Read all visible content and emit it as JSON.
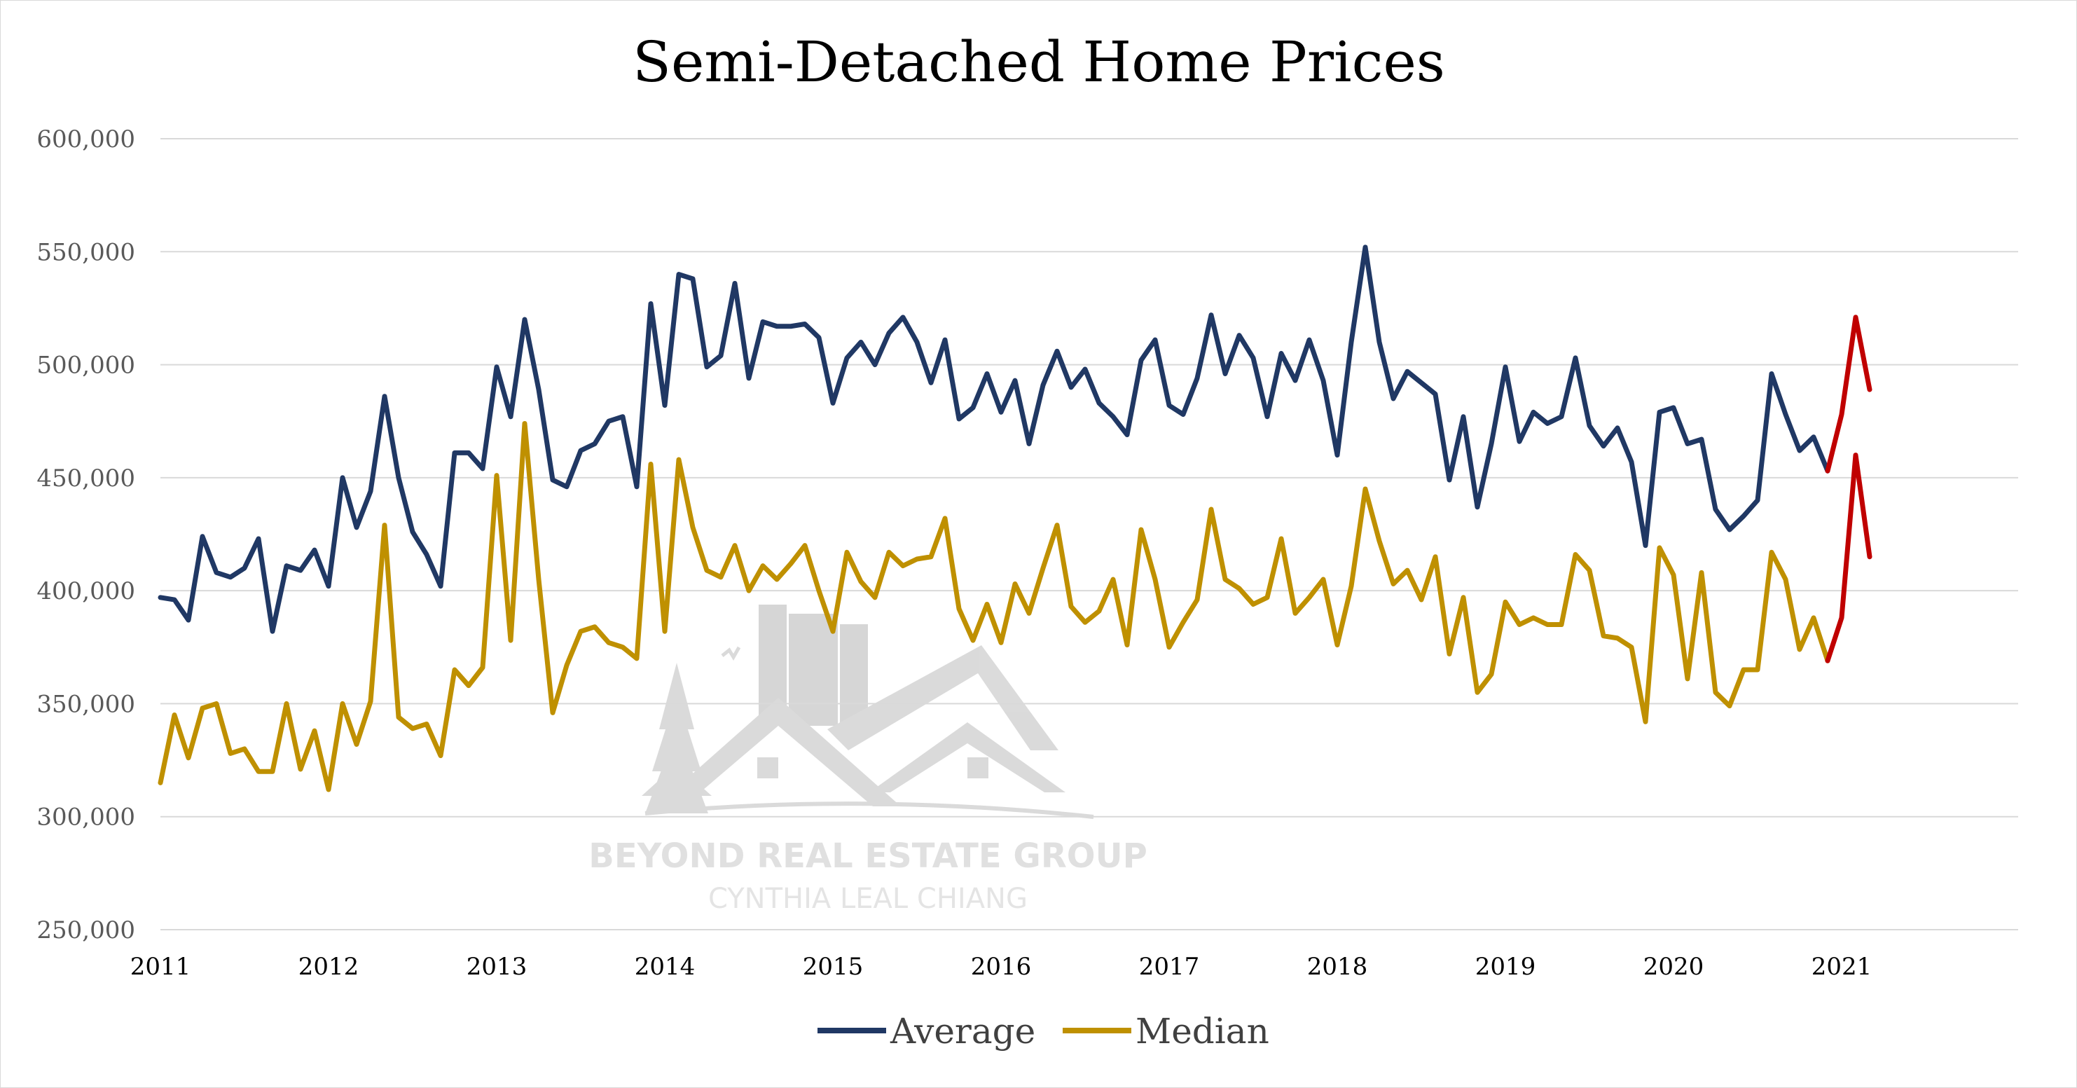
{
  "chart_data": {
    "type": "line",
    "title": "Semi-Detached Home Prices",
    "xlabel": "",
    "ylabel": "",
    "ylim": [
      250000,
      600000
    ],
    "y_ticks": [
      "250,000",
      "300,000",
      "350,000",
      "400,000",
      "450,000",
      "500,000",
      "550,000",
      "600,000"
    ],
    "x_ticks": [
      "2011",
      "2012",
      "2013",
      "2014",
      "2015",
      "2016",
      "2017",
      "2018",
      "2019",
      "2020",
      "2021"
    ],
    "x": [
      "2011-01",
      "2011-02",
      "2011-03",
      "2011-04",
      "2011-05",
      "2011-06",
      "2011-07",
      "2011-08",
      "2011-09",
      "2011-10",
      "2011-11",
      "2011-12",
      "2012-01",
      "2012-02",
      "2012-03",
      "2012-04",
      "2012-05",
      "2012-06",
      "2012-07",
      "2012-08",
      "2012-09",
      "2012-10",
      "2012-11",
      "2012-12",
      "2013-01",
      "2013-02",
      "2013-03",
      "2013-04",
      "2013-05",
      "2013-06",
      "2013-07",
      "2013-08",
      "2013-09",
      "2013-10",
      "2013-11",
      "2013-12",
      "2014-01",
      "2014-02",
      "2014-03",
      "2014-04",
      "2014-05",
      "2014-06",
      "2014-07",
      "2014-08",
      "2014-09",
      "2014-10",
      "2014-11",
      "2014-12",
      "2015-01",
      "2015-02",
      "2015-03",
      "2015-04",
      "2015-05",
      "2015-06",
      "2015-07",
      "2015-08",
      "2015-09",
      "2015-10",
      "2015-11",
      "2015-12",
      "2016-01",
      "2016-02",
      "2016-03",
      "2016-04",
      "2016-05",
      "2016-06",
      "2016-07",
      "2016-08",
      "2016-09",
      "2016-10",
      "2016-11",
      "2016-12",
      "2017-01",
      "2017-02",
      "2017-03",
      "2017-04",
      "2017-05",
      "2017-06",
      "2017-07",
      "2017-08",
      "2017-09",
      "2017-10",
      "2017-11",
      "2017-12",
      "2018-01",
      "2018-02",
      "2018-03",
      "2018-04",
      "2018-05",
      "2018-06",
      "2018-07",
      "2018-08",
      "2018-09",
      "2018-10",
      "2018-11",
      "2018-12",
      "2019-01",
      "2019-02",
      "2019-03",
      "2019-04",
      "2019-05",
      "2019-06",
      "2019-07",
      "2019-08",
      "2019-09",
      "2019-10",
      "2019-11",
      "2019-12",
      "2020-01",
      "2020-02",
      "2020-03",
      "2020-04",
      "2020-05",
      "2020-06",
      "2020-07",
      "2020-08",
      "2020-09",
      "2020-10",
      "2020-11",
      "2020-12",
      "2021-01",
      "2021-02",
      "2021-03"
    ],
    "series": [
      {
        "name": "Average",
        "color": "#203864",
        "values": [
          397000,
          396000,
          387000,
          424000,
          408000,
          406000,
          410000,
          423000,
          382000,
          411000,
          409000,
          418000,
          402000,
          450000,
          428000,
          444000,
          486000,
          450000,
          426000,
          416000,
          402000,
          461000,
          461000,
          454000,
          499000,
          477000,
          520000,
          489000,
          449000,
          446000,
          462000,
          465000,
          475000,
          477000,
          446000,
          527000,
          482000,
          540000,
          538000,
          499000,
          504000,
          536000,
          494000,
          519000,
          517000,
          517000,
          518000,
          512000,
          483000,
          503000,
          510000,
          500000,
          514000,
          521000,
          510000,
          492000,
          511000,
          476000,
          481000,
          496000,
          479000,
          493000,
          465000,
          491000,
          506000,
          490000,
          498000,
          483000,
          477000,
          469000,
          502000,
          511000,
          482000,
          478000,
          494000,
          522000,
          496000,
          513000,
          503000,
          477000,
          505000,
          493000,
          511000,
          493000,
          460000,
          510000,
          552000,
          510000,
          485000,
          497000,
          492000,
          487000,
          449000,
          477000,
          437000,
          465000,
          499000,
          466000,
          479000,
          474000,
          477000,
          503000,
          473000,
          464000,
          472000,
          457000,
          420000,
          479000,
          481000,
          465000,
          467000,
          436000,
          427000,
          433000,
          440000,
          496000,
          478000,
          462000,
          468000,
          453000,
          null,
          null,
          null
        ],
        "highlight": {
          "color": "#c00000",
          "start": "2020-12",
          "values": [
            453000,
            478000,
            521000,
            489000
          ]
        }
      },
      {
        "name": "Median",
        "color": "#bf9000",
        "values": [
          315000,
          345000,
          326000,
          348000,
          350000,
          328000,
          330000,
          320000,
          320000,
          350000,
          321000,
          338000,
          312000,
          350000,
          332000,
          351000,
          429000,
          344000,
          339000,
          341000,
          327000,
          365000,
          358000,
          366000,
          451000,
          378000,
          474000,
          405000,
          346000,
          367000,
          382000,
          384000,
          377000,
          375000,
          370000,
          456000,
          382000,
          458000,
          428000,
          409000,
          406000,
          420000,
          400000,
          411000,
          405000,
          412000,
          420000,
          400000,
          382000,
          417000,
          404000,
          397000,
          417000,
          411000,
          414000,
          415000,
          432000,
          392000,
          378000,
          394000,
          377000,
          403000,
          390000,
          410000,
          429000,
          393000,
          386000,
          391000,
          405000,
          376000,
          427000,
          405000,
          375000,
          386000,
          396000,
          436000,
          405000,
          401000,
          394000,
          397000,
          423000,
          390000,
          397000,
          405000,
          376000,
          402000,
          445000,
          422000,
          403000,
          409000,
          396000,
          415000,
          372000,
          397000,
          355000,
          363000,
          395000,
          385000,
          388000,
          385000,
          385000,
          416000,
          409000,
          380000,
          379000,
          375000,
          342000,
          419000,
          407000,
          361000,
          408000,
          355000,
          349000,
          365000,
          365000,
          417000,
          405000,
          374000,
          388000,
          369000,
          null,
          null,
          null
        ],
        "highlight": {
          "color": "#c00000",
          "start": "2020-12",
          "values": [
            369000,
            388000,
            460000,
            415000
          ]
        }
      }
    ],
    "legend_position": "bottom",
    "grid": true
  },
  "watermark": {
    "line1": "BEYOND REAL ESTATE GROUP",
    "line2": "CYNTHIA LEAL CHIANG"
  }
}
